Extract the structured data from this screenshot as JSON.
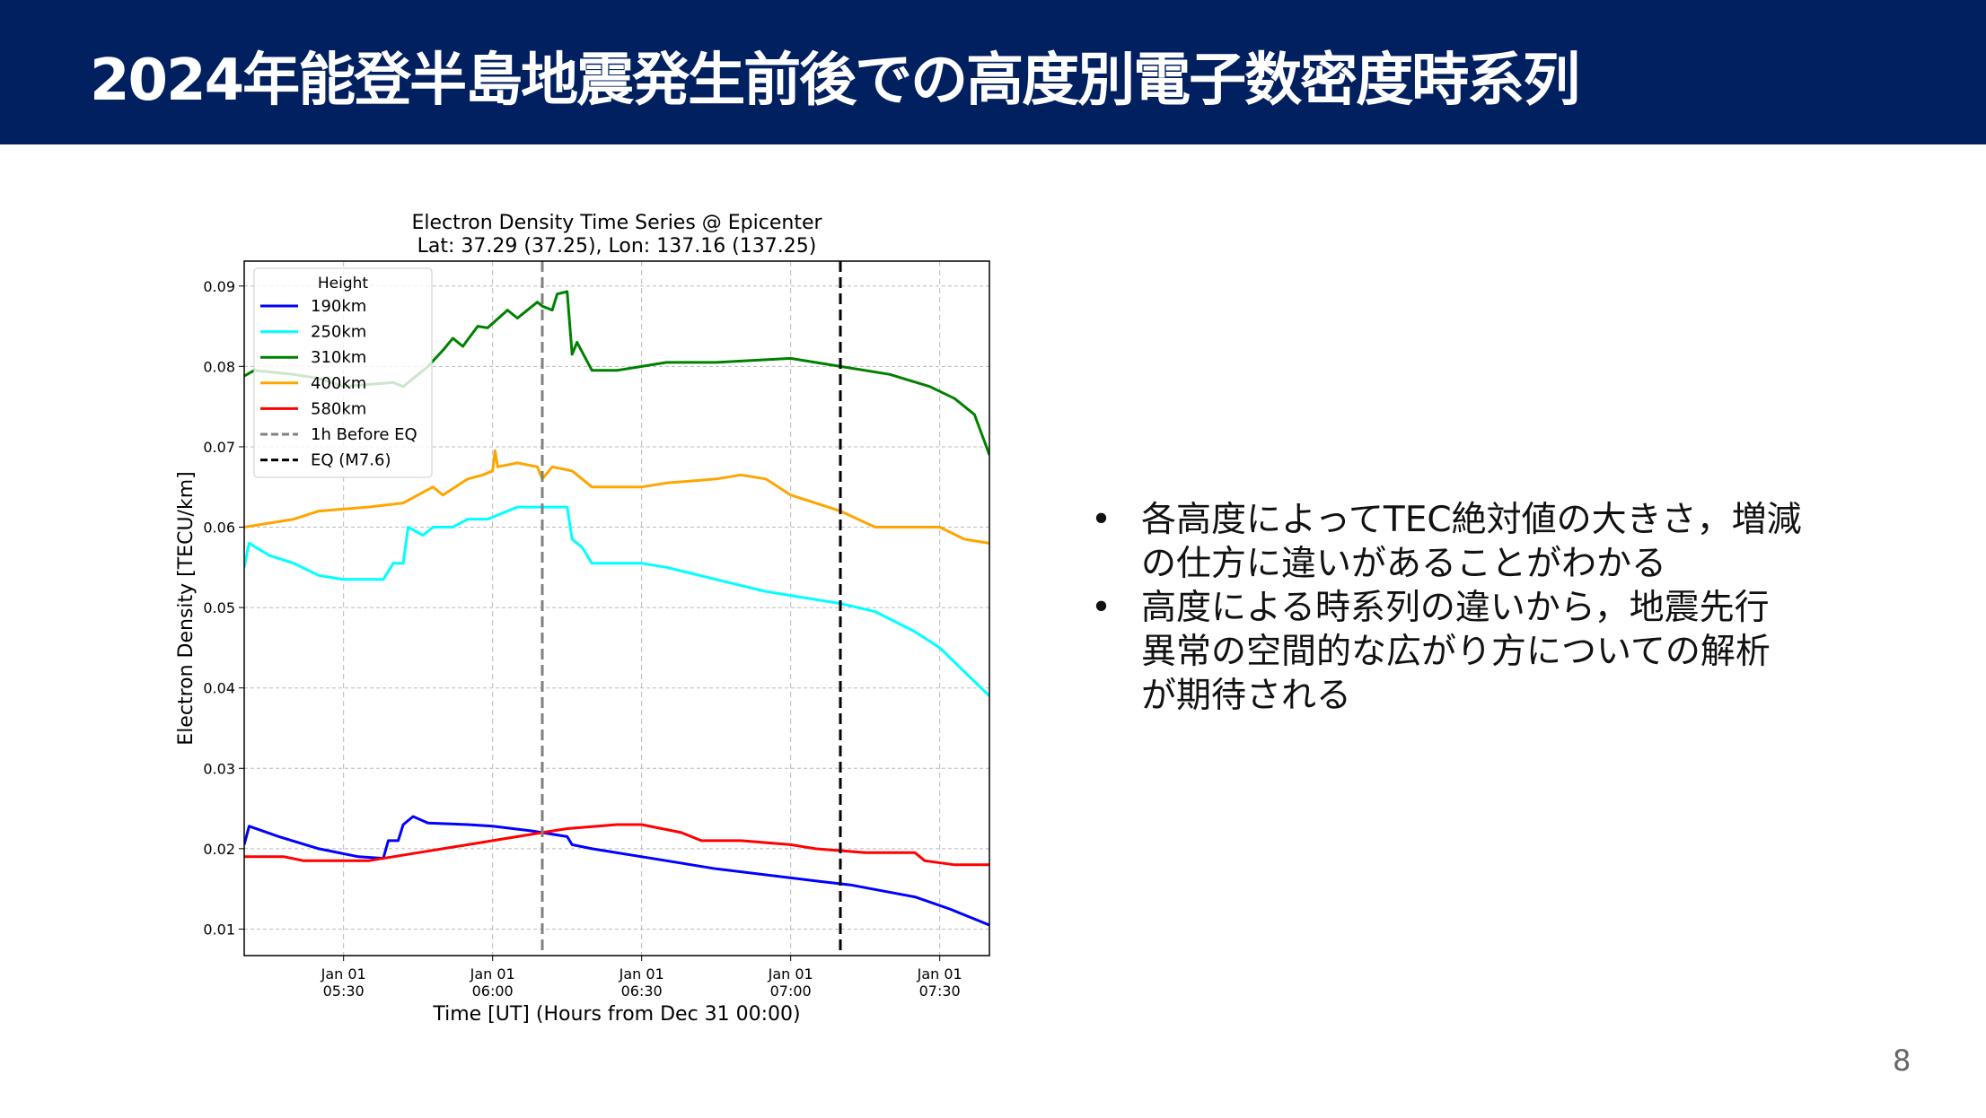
{
  "slide": {
    "title": "2024年能登半島地震発生前後での高度別電子数密度時系列",
    "page_number": "8",
    "header_color": "#012060",
    "bullets": [
      {
        "lines": [
          "各高度によってTEC絶対値の大きさ，増減",
          "の仕方に違いがあることがわかる"
        ]
      },
      {
        "lines": [
          "高度による時系列の違いから，地震先行",
          "異常の空間的な広がり方についての解析",
          "が期待される"
        ]
      }
    ]
  },
  "chart_data": {
    "type": "line",
    "title": "Electron Density Time Series @ Epicenter",
    "subtitle": "Lat: 37.29 (37.25), Lon: 137.16 (137.25)",
    "xlabel": "Time [UT] (Hours from Dec 31 00:00)",
    "ylabel": "Electron Density [TECU/km]",
    "xlim": [
      "05:10",
      "07:40"
    ],
    "ylim": [
      0.0067,
      0.0931
    ],
    "grid": true,
    "x_ticks": [
      {
        "value": "05:30",
        "date": "Jan 01",
        "time": "05:30"
      },
      {
        "value": "06:00",
        "date": "Jan 01",
        "time": "06:00"
      },
      {
        "value": "06:30",
        "date": "Jan 01",
        "time": "06:30"
      },
      {
        "value": "07:00",
        "date": "Jan 01",
        "time": "07:00"
      },
      {
        "value": "07:30",
        "date": "Jan 01",
        "time": "07:30"
      }
    ],
    "y_ticks": [
      {
        "value": 0.01,
        "label": "0.01"
      },
      {
        "value": 0.02,
        "label": "0.02"
      },
      {
        "value": 0.03,
        "label": "0.03"
      },
      {
        "value": 0.04,
        "label": "0.04"
      },
      {
        "value": 0.05,
        "label": "0.05"
      },
      {
        "value": 0.06,
        "label": "0.06"
      },
      {
        "value": 0.07,
        "label": "0.07"
      },
      {
        "value": 0.08,
        "label": "0.08"
      },
      {
        "value": 0.09,
        "label": "0.09"
      }
    ],
    "legend": {
      "title": "Height",
      "placement": "upper-left"
    },
    "series": [
      {
        "name": "190km",
        "color": "#0000ff",
        "points": [
          [
            "05:10",
            0.0205
          ],
          [
            "05:11",
            0.0228
          ],
          [
            "05:17",
            0.0215
          ],
          [
            "05:25",
            0.02
          ],
          [
            "05:33",
            0.019
          ],
          [
            "05:38",
            0.0188
          ],
          [
            "05:39",
            0.021
          ],
          [
            "05:41",
            0.021
          ],
          [
            "05:42",
            0.023
          ],
          [
            "05:44",
            0.024
          ],
          [
            "05:47",
            0.0232
          ],
          [
            "05:55",
            0.023
          ],
          [
            "06:00",
            0.0228
          ],
          [
            "06:08",
            0.0222
          ],
          [
            "06:15",
            0.0215
          ],
          [
            "06:16",
            0.0205
          ],
          [
            "06:20",
            0.02
          ],
          [
            "06:30",
            0.019
          ],
          [
            "06:45",
            0.0175
          ],
          [
            "07:05",
            0.016
          ],
          [
            "07:12",
            0.0155
          ],
          [
            "07:25",
            0.014
          ],
          [
            "07:32",
            0.0125
          ],
          [
            "07:40",
            0.0105
          ]
        ]
      },
      {
        "name": "250km",
        "color": "#00ffff",
        "points": [
          [
            "05:10",
            0.055
          ],
          [
            "05:11",
            0.058
          ],
          [
            "05:15",
            0.0565
          ],
          [
            "05:20",
            0.0555
          ],
          [
            "05:25",
            0.054
          ],
          [
            "05:30",
            0.0535
          ],
          [
            "05:38",
            0.0535
          ],
          [
            "05:40",
            0.0555
          ],
          [
            "05:42",
            0.0555
          ],
          [
            "05:43",
            0.06
          ],
          [
            "05:46",
            0.059
          ],
          [
            "05:48",
            0.06
          ],
          [
            "05:52",
            0.06
          ],
          [
            "05:55",
            0.061
          ],
          [
            "05:59",
            0.061
          ],
          [
            "06:05",
            0.0625
          ],
          [
            "06:15",
            0.0625
          ],
          [
            "06:16",
            0.0585
          ],
          [
            "06:18",
            0.0575
          ],
          [
            "06:20",
            0.0555
          ],
          [
            "06:30",
            0.0555
          ],
          [
            "06:35",
            0.055
          ],
          [
            "06:45",
            0.0535
          ],
          [
            "06:55",
            0.052
          ],
          [
            "07:10",
            0.0505
          ],
          [
            "07:17",
            0.0495
          ],
          [
            "07:25",
            0.047
          ],
          [
            "07:30",
            0.045
          ],
          [
            "07:35",
            0.042
          ],
          [
            "07:40",
            0.039
          ]
        ]
      },
      {
        "name": "310km",
        "color": "#008000",
        "points": [
          [
            "05:10",
            0.0788
          ],
          [
            "05:12",
            0.0795
          ],
          [
            "05:20",
            0.079
          ],
          [
            "05:25",
            0.0785
          ],
          [
            "05:30",
            0.0775
          ],
          [
            "05:40",
            0.078
          ],
          [
            "05:42",
            0.0775
          ],
          [
            "05:47",
            0.08
          ],
          [
            "05:50",
            0.082
          ],
          [
            "05:52",
            0.0835
          ],
          [
            "05:54",
            0.0825
          ],
          [
            "05:57",
            0.085
          ],
          [
            "05:59",
            0.0848
          ],
          [
            "06:03",
            0.087
          ],
          [
            "06:05",
            0.086
          ],
          [
            "06:08",
            0.0875
          ],
          [
            "06:09",
            0.088
          ],
          [
            "06:10",
            0.0875
          ],
          [
            "06:12",
            0.087
          ],
          [
            "06:13",
            0.089
          ],
          [
            "06:15",
            0.0893
          ],
          [
            "06:16",
            0.0815
          ],
          [
            "06:17",
            0.083
          ],
          [
            "06:20",
            0.0795
          ],
          [
            "06:25",
            0.0795
          ],
          [
            "06:30",
            0.08
          ],
          [
            "06:35",
            0.0805
          ],
          [
            "06:45",
            0.0805
          ],
          [
            "07:00",
            0.081
          ],
          [
            "07:05",
            0.0805
          ],
          [
            "07:10",
            0.08
          ],
          [
            "07:15",
            0.0795
          ],
          [
            "07:20",
            0.079
          ],
          [
            "07:28",
            0.0775
          ],
          [
            "07:33",
            0.076
          ],
          [
            "07:37",
            0.074
          ],
          [
            "07:40",
            0.069
          ]
        ]
      },
      {
        "name": "400km",
        "color": "#ffa500",
        "points": [
          [
            "05:10",
            0.06
          ],
          [
            "05:20",
            0.061
          ],
          [
            "05:25",
            0.062
          ],
          [
            "05:35",
            0.0625
          ],
          [
            "05:42",
            0.063
          ],
          [
            "05:48",
            0.065
          ],
          [
            "05:50",
            0.064
          ],
          [
            "05:55",
            0.066
          ],
          [
            "05:58",
            0.0665
          ],
          [
            "06:00",
            0.067
          ],
          [
            "06:00.5",
            0.0695
          ],
          [
            "06:01",
            0.0675
          ],
          [
            "06:05",
            0.068
          ],
          [
            "06:09",
            0.0675
          ],
          [
            "06:10",
            0.066
          ],
          [
            "06:12",
            0.0675
          ],
          [
            "06:16",
            0.067
          ],
          [
            "06:20",
            0.065
          ],
          [
            "06:30",
            0.065
          ],
          [
            "06:35",
            0.0655
          ],
          [
            "06:45",
            0.066
          ],
          [
            "06:50",
            0.0665
          ],
          [
            "06:55",
            0.066
          ],
          [
            "07:00",
            0.064
          ],
          [
            "07:10",
            0.062
          ],
          [
            "07:17",
            0.06
          ],
          [
            "07:30",
            0.06
          ],
          [
            "07:35",
            0.0585
          ],
          [
            "07:40",
            0.058
          ]
        ]
      },
      {
        "name": "580km",
        "color": "#ff0000",
        "points": [
          [
            "05:10",
            0.019
          ],
          [
            "05:18",
            0.019
          ],
          [
            "05:22",
            0.0185
          ],
          [
            "05:35",
            0.0185
          ],
          [
            "05:45",
            0.0195
          ],
          [
            "05:55",
            0.0205
          ],
          [
            "06:00",
            0.021
          ],
          [
            "06:10",
            0.022
          ],
          [
            "06:15",
            0.0225
          ],
          [
            "06:25",
            0.023
          ],
          [
            "06:30",
            0.023
          ],
          [
            "06:38",
            0.022
          ],
          [
            "06:42",
            0.021
          ],
          [
            "06:50",
            0.021
          ],
          [
            "07:00",
            0.0205
          ],
          [
            "07:05",
            0.02
          ],
          [
            "07:15",
            0.0195
          ],
          [
            "07:25",
            0.0195
          ],
          [
            "07:27",
            0.0185
          ],
          [
            "07:33",
            0.018
          ],
          [
            "07:40",
            0.018
          ]
        ]
      }
    ],
    "vlines": [
      {
        "name": "1h Before EQ",
        "x": "06:10",
        "color": "#808080",
        "style": "dashed"
      },
      {
        "name": "EQ (M7.6)",
        "x": "07:10",
        "color": "#000000",
        "style": "dashed"
      }
    ]
  }
}
